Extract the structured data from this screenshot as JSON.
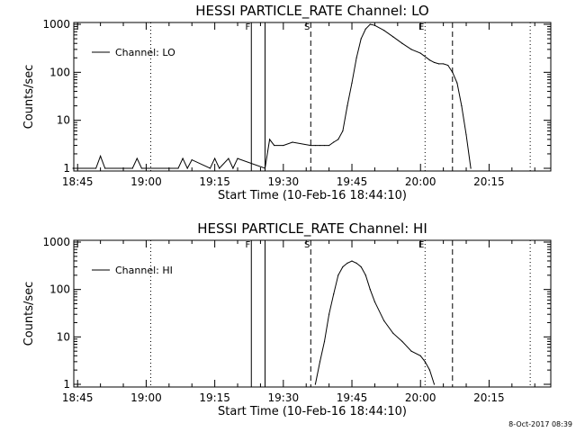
{
  "footer": {
    "date_stamp": "8-Oct-2017 08:39"
  },
  "chart_data": [
    {
      "type": "line",
      "title": "HESSI PARTICLE_RATE Channel: LO",
      "xlabel": "Start Time (10-Feb-16 18:44:10)",
      "ylabel": "Counts/sec",
      "yscale": "log",
      "xlim": [
        "18:44:10",
        "20:28:30"
      ],
      "ylim": [
        1,
        1000
      ],
      "x_ticks": [
        "18:45",
        "19:00",
        "19:15",
        "19:30",
        "19:45",
        "20:00",
        "20:15"
      ],
      "y_ticks": [
        "1",
        "10",
        "100",
        "1000"
      ],
      "legend": {
        "label": "Channel: LO",
        "placement": "top-left"
      },
      "markers": [
        {
          "label": "F",
          "time": "19:23",
          "style": "solid"
        },
        {
          "label": "",
          "time": "19:26",
          "style": "solid"
        },
        {
          "label": "S",
          "time": "19:36",
          "style": "dashed"
        },
        {
          "label": "E",
          "time": "20:01",
          "style": "dotted"
        },
        {
          "label": "",
          "time": "20:07",
          "style": "dashed"
        },
        {
          "label": "",
          "time": "19:01",
          "style": "dotted"
        },
        {
          "label": "",
          "time": "20:24",
          "style": "dotted"
        }
      ],
      "series": [
        {
          "x": [
            "18:44",
            "18:49",
            "18:50",
            "18:51",
            "18:57",
            "18:58",
            "18:59",
            "19:07",
            "19:08",
            "19:09",
            "19:10",
            "19:14",
            "19:15",
            "19:16",
            "19:18",
            "19:19",
            "19:20",
            "19:26",
            "19:27",
            "19:28",
            "19:30",
            "19:32",
            "19:36",
            "19:37",
            "19:38",
            "19:39",
            "19:40",
            "19:41",
            "19:42",
            "19:43",
            "19:44",
            "19:45",
            "19:46",
            "19:47",
            "19:48",
            "19:49",
            "19:50",
            "19:52",
            "19:54",
            "19:56",
            "19:58",
            "20:00",
            "20:02",
            "20:03",
            "20:04",
            "20:05",
            "20:06",
            "20:07",
            "20:08",
            "20:09",
            "20:10",
            "20:11"
          ],
          "y": [
            1,
            1,
            1.8,
            1,
            1,
            1.6,
            1,
            1,
            1.6,
            1,
            1.5,
            1,
            1.6,
            1,
            1.6,
            1,
            1.6,
            1,
            4,
            3,
            3,
            3.5,
            3,
            3,
            3,
            3,
            3,
            3.5,
            4,
            6,
            20,
            60,
            200,
            500,
            800,
            1000,
            950,
            750,
            550,
            400,
            300,
            250,
            180,
            160,
            150,
            150,
            140,
            100,
            60,
            20,
            5,
            1
          ]
        }
      ]
    },
    {
      "type": "line",
      "title": "HESSI PARTICLE_RATE Channel: HI",
      "xlabel": "Start Time (10-Feb-16 18:44:10)",
      "ylabel": "Counts/sec",
      "yscale": "log",
      "xlim": [
        "18:44:10",
        "20:28:30"
      ],
      "ylim": [
        1,
        1000
      ],
      "x_ticks": [
        "18:45",
        "19:00",
        "19:15",
        "19:30",
        "19:45",
        "20:00",
        "20:15"
      ],
      "y_ticks": [
        "1",
        "10",
        "100",
        "1000"
      ],
      "legend": {
        "label": "Channel: HI",
        "placement": "top-left"
      },
      "markers": [
        {
          "label": "F",
          "time": "19:23",
          "style": "solid"
        },
        {
          "label": "",
          "time": "19:26",
          "style": "solid"
        },
        {
          "label": "S",
          "time": "19:36",
          "style": "dashed"
        },
        {
          "label": "E",
          "time": "20:01",
          "style": "dotted"
        },
        {
          "label": "",
          "time": "20:07",
          "style": "dashed"
        },
        {
          "label": "",
          "time": "19:01",
          "style": "dotted"
        },
        {
          "label": "",
          "time": "20:24",
          "style": "dotted"
        }
      ],
      "series": [
        {
          "x": [
            "19:37",
            "19:38",
            "19:39",
            "19:40",
            "19:41",
            "19:42",
            "19:43",
            "19:44",
            "19:45",
            "19:46",
            "19:47",
            "19:48",
            "19:49",
            "19:50",
            "19:52",
            "19:54",
            "19:56",
            "19:58",
            "20:00",
            "20:01",
            "20:02",
            "20:03"
          ],
          "y": [
            1,
            3,
            8,
            30,
            80,
            200,
            300,
            360,
            400,
            360,
            300,
            200,
            100,
            55,
            22,
            12,
            8,
            5,
            4,
            3,
            2,
            1
          ]
        }
      ]
    }
  ]
}
